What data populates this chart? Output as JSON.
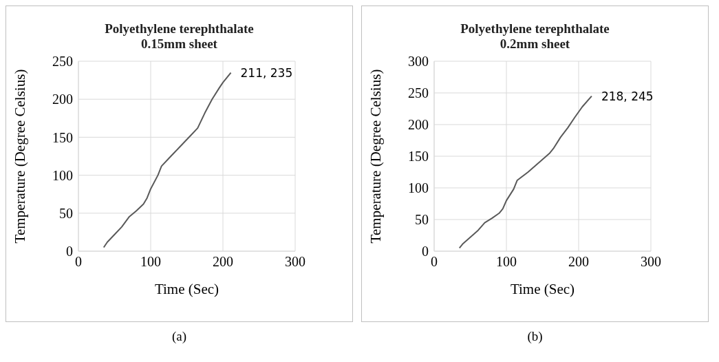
{
  "chart_data": [
    {
      "type": "line",
      "title": "Polyethylene terephthalate\n0.15mm sheet",
      "xlabel": "Time (Sec)",
      "ylabel": "Temperature (Degree Celsius)",
      "xlim": [
        0,
        300
      ],
      "xticks": [
        0,
        100,
        200,
        300
      ],
      "ylim": [
        0,
        250
      ],
      "yticks": [
        0,
        50,
        100,
        150,
        200,
        250
      ],
      "grid": true,
      "marker": "none",
      "line_style": "solid",
      "series": [
        {
          "color": "#595959",
          "x": [
            35,
            40,
            50,
            60,
            70,
            80,
            90,
            95,
            100,
            110,
            115,
            125,
            140,
            155,
            165,
            175,
            185,
            195,
            200,
            211
          ],
          "values": [
            5,
            12,
            22,
            32,
            45,
            53,
            62,
            70,
            82,
            100,
            112,
            122,
            137,
            152,
            162,
            182,
            200,
            215,
            222,
            235
          ]
        }
      ],
      "annotations": [
        {
          "text": "211, 235",
          "x": 211,
          "y": 235
        },
        "(a)"
      ]
    },
    {
      "type": "line",
      "title": "Polyethylene terephthalate\n0.2mm sheet",
      "xlabel": "Time (Sec)",
      "ylabel": "Temperature (Degree Celsius)",
      "xlim": [
        0,
        300
      ],
      "xticks": [
        0,
        100,
        200,
        300
      ],
      "ylim": [
        0,
        300
      ],
      "yticks": [
        0,
        50,
        100,
        150,
        200,
        250,
        300
      ],
      "grid": true,
      "marker": "none",
      "line_style": "solid",
      "series": [
        {
          "color": "#595959",
          "x": [
            35,
            40,
            50,
            60,
            70,
            80,
            90,
            95,
            100,
            110,
            115,
            130,
            145,
            160,
            165,
            175,
            185,
            195,
            205,
            218
          ],
          "values": [
            5,
            12,
            22,
            32,
            45,
            52,
            60,
            67,
            80,
            98,
            112,
            125,
            140,
            155,
            162,
            180,
            195,
            212,
            228,
            245
          ]
        }
      ],
      "annotations": [
        {
          "text": "218, 245",
          "x": 218,
          "y": 245
        },
        "(b)"
      ]
    }
  ]
}
